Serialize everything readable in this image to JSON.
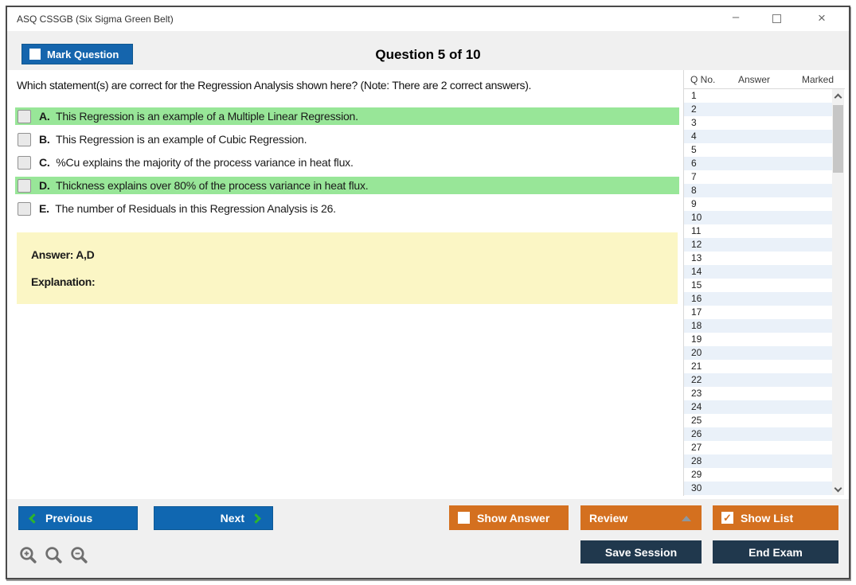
{
  "window": {
    "title": "ASQ CSSGB (Six Sigma Green Belt)",
    "controls": [
      "minimize",
      "maximize",
      "close"
    ]
  },
  "header": {
    "mark_question_label": "Mark Question",
    "mark_question_checked": false,
    "question_counter": "Question 5 of 10"
  },
  "question": {
    "text": "Which statement(s) are correct for the Regression Analysis shown here? (Note: There are 2 correct answers).",
    "options": [
      {
        "letter": "A.",
        "text": "This Regression is an example of a Multiple Linear Regression.",
        "highlighted": true,
        "checked": false
      },
      {
        "letter": "B.",
        "text": "This Regression is an example of Cubic Regression.",
        "highlighted": false,
        "checked": false
      },
      {
        "letter": "C.",
        "text": "%Cu explains the majority of the process variance in heat flux.",
        "highlighted": false,
        "checked": false
      },
      {
        "letter": "D.",
        "text": "Thickness explains over 80% of the process variance in heat flux.",
        "highlighted": true,
        "checked": false
      },
      {
        "letter": "E.",
        "text": "The number of Residuals in this Regression Analysis is 26.",
        "highlighted": false,
        "checked": false
      }
    ]
  },
  "answer_box": {
    "answer_label": "Answer: A,D",
    "explanation_label": "Explanation:"
  },
  "sidebar": {
    "columns": [
      "Q No.",
      "Answer",
      "Marked"
    ],
    "rows": [
      1,
      2,
      3,
      4,
      5,
      6,
      7,
      8,
      9,
      10,
      11,
      12,
      13,
      14,
      15,
      16,
      17,
      18,
      19,
      20,
      21,
      22,
      23,
      24,
      25,
      26,
      27,
      28,
      29,
      30
    ]
  },
  "footer": {
    "previous_label": "Previous",
    "next_label": "Next",
    "show_answer_label": "Show Answer",
    "show_answer_checked": false,
    "review_label": "Review",
    "show_list_label": "Show List",
    "show_list_checked": true,
    "check_glyph": "✓",
    "save_session_label": "Save Session",
    "end_exam_label": "End Exam"
  },
  "colors": {
    "accent_blue": "#1067b1",
    "accent_orange": "#d4701f",
    "navy": "#20384d",
    "highlight_green": "#98e698",
    "answer_box_yellow": "#fbf6c5",
    "row_alternate": "#eaf1f9",
    "chevron_green": "#2db52d"
  }
}
